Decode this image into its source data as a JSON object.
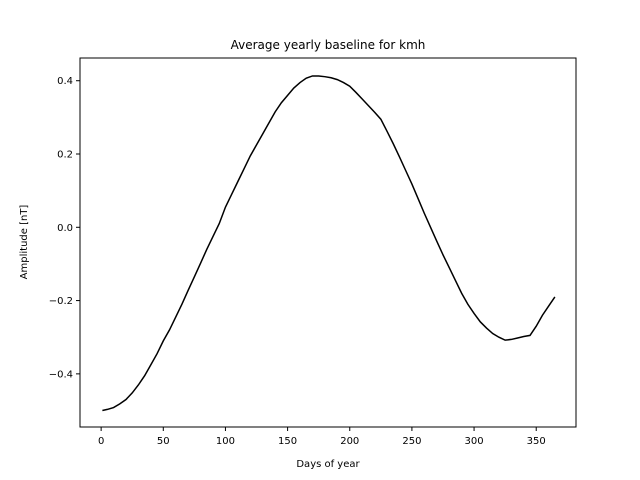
{
  "chart_data": {
    "type": "line",
    "title": "Average yearly baseline for kmh",
    "xlabel": "Days of year",
    "ylabel": "Amplitude [nT]",
    "xlim": [
      -17,
      382
    ],
    "ylim": [
      -0.545,
      0.462
    ],
    "x_ticks": [
      0,
      50,
      100,
      150,
      200,
      250,
      300,
      350
    ],
    "y_ticks": [
      -0.4,
      -0.2,
      0.0,
      0.2,
      0.4
    ],
    "y_tick_labels": [
      "−0.4",
      "−0.2",
      "0.0",
      "0.2",
      "0.4"
    ],
    "grid": false,
    "line_color": "#000000",
    "series": [
      {
        "x": [
          1,
          5,
          10,
          15,
          20,
          25,
          30,
          35,
          40,
          45,
          50,
          55,
          60,
          65,
          70,
          75,
          80,
          85,
          90,
          95,
          100,
          105,
          110,
          115,
          120,
          125,
          130,
          135,
          140,
          145,
          150,
          155,
          160,
          165,
          170,
          175,
          180,
          185,
          190,
          195,
          200,
          205,
          210,
          215,
          220,
          225,
          230,
          235,
          240,
          245,
          250,
          255,
          260,
          265,
          270,
          275,
          280,
          285,
          290,
          295,
          300,
          305,
          310,
          315,
          320,
          325,
          330,
          335,
          340,
          345,
          350,
          355,
          360,
          365
        ],
        "y": [
          -0.5,
          -0.497,
          -0.492,
          -0.482,
          -0.47,
          -0.452,
          -0.43,
          -0.405,
          -0.375,
          -0.345,
          -0.31,
          -0.28,
          -0.245,
          -0.21,
          -0.172,
          -0.135,
          -0.098,
          -0.06,
          -0.025,
          0.01,
          0.055,
          0.09,
          0.125,
          0.16,
          0.195,
          0.225,
          0.255,
          0.285,
          0.315,
          0.34,
          0.36,
          0.38,
          0.395,
          0.407,
          0.413,
          0.413,
          0.411,
          0.408,
          0.403,
          0.395,
          0.385,
          0.368,
          0.35,
          0.332,
          0.314,
          0.295,
          0.262,
          0.228,
          0.192,
          0.155,
          0.118,
          0.078,
          0.038,
          0.0,
          -0.038,
          -0.075,
          -0.11,
          -0.145,
          -0.18,
          -0.21,
          -0.235,
          -0.258,
          -0.275,
          -0.29,
          -0.3,
          -0.308,
          -0.306,
          -0.302,
          -0.298,
          -0.295,
          -0.27,
          -0.24,
          -0.215,
          -0.19
        ]
      }
    ]
  }
}
